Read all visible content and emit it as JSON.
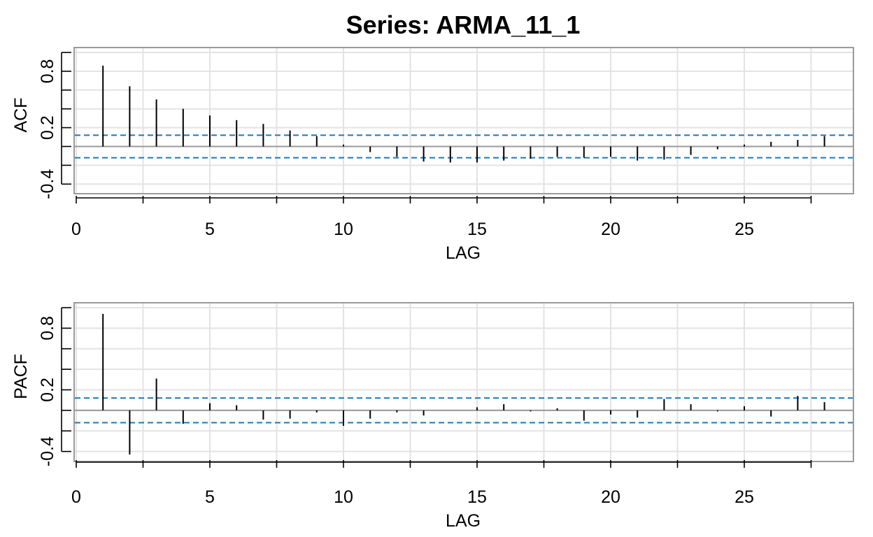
{
  "title": "Series:  ARMA_11_1",
  "colors": {
    "confidence_band": "#1f77b4",
    "spike": "#000000",
    "grid": "#e3e3e3",
    "frame": "#9a9a9a"
  },
  "chart_data": [
    {
      "type": "bar",
      "ylabel": "ACF",
      "xlabel": "LAG",
      "xlim": [
        0,
        29
      ],
      "ylim": [
        -0.45,
        1.0
      ],
      "xticks": [
        0,
        5,
        10,
        15,
        20,
        25
      ],
      "xticks_minor": [
        0,
        2.5,
        5,
        7.5,
        10,
        12.5,
        15,
        17.5,
        20,
        22.5,
        25,
        27.5
      ],
      "yticks": [
        -0.4,
        0.2,
        0.8
      ],
      "yticks_minor": [
        -0.4,
        -0.2,
        0.0,
        0.2,
        0.4,
        0.6,
        0.8,
        1.0
      ],
      "ytick_labels": [
        "-0.4",
        "0.2",
        "0.8"
      ],
      "grid": true,
      "confidence_band": [
        -0.12,
        0.12
      ],
      "x": [
        1,
        2,
        3,
        4,
        5,
        6,
        7,
        8,
        9,
        10,
        11,
        12,
        13,
        14,
        15,
        16,
        17,
        18,
        19,
        20,
        21,
        22,
        23,
        24,
        25,
        26,
        27,
        28
      ],
      "values": [
        0.86,
        0.64,
        0.5,
        0.4,
        0.33,
        0.28,
        0.24,
        0.17,
        0.11,
        0.02,
        -0.06,
        -0.11,
        -0.16,
        -0.17,
        -0.17,
        -0.15,
        -0.13,
        -0.11,
        -0.12,
        -0.11,
        -0.15,
        -0.14,
        -0.09,
        -0.03,
        0.02,
        0.05,
        0.07,
        0.11
      ]
    },
    {
      "type": "bar",
      "ylabel": "PACF",
      "xlabel": "LAG",
      "xlim": [
        0,
        29
      ],
      "ylim": [
        -0.45,
        1.0
      ],
      "xticks": [
        0,
        5,
        10,
        15,
        20,
        25
      ],
      "xticks_minor": [
        0,
        2.5,
        5,
        7.5,
        10,
        12.5,
        15,
        17.5,
        20,
        22.5,
        25,
        27.5
      ],
      "yticks": [
        -0.4,
        0.2,
        0.8
      ],
      "yticks_minor": [
        -0.4,
        -0.2,
        0.0,
        0.2,
        0.4,
        0.6,
        0.8,
        1.0
      ],
      "ytick_labels": [
        "-0.4",
        "0.2",
        "0.8"
      ],
      "grid": true,
      "confidence_band": [
        -0.12,
        0.12
      ],
      "x": [
        1,
        2,
        3,
        4,
        5,
        6,
        7,
        8,
        9,
        10,
        11,
        12,
        13,
        14,
        15,
        16,
        17,
        18,
        19,
        20,
        21,
        22,
        23,
        24,
        25,
        26,
        27,
        28
      ],
      "values": [
        0.94,
        -0.43,
        0.31,
        -0.13,
        0.07,
        0.05,
        -0.09,
        -0.08,
        -0.02,
        -0.15,
        -0.08,
        -0.02,
        -0.05,
        0.0,
        0.03,
        0.06,
        -0.01,
        0.02,
        -0.1,
        -0.04,
        -0.07,
        0.11,
        0.06,
        -0.01,
        0.04,
        -0.06,
        0.14,
        0.08
      ]
    }
  ]
}
